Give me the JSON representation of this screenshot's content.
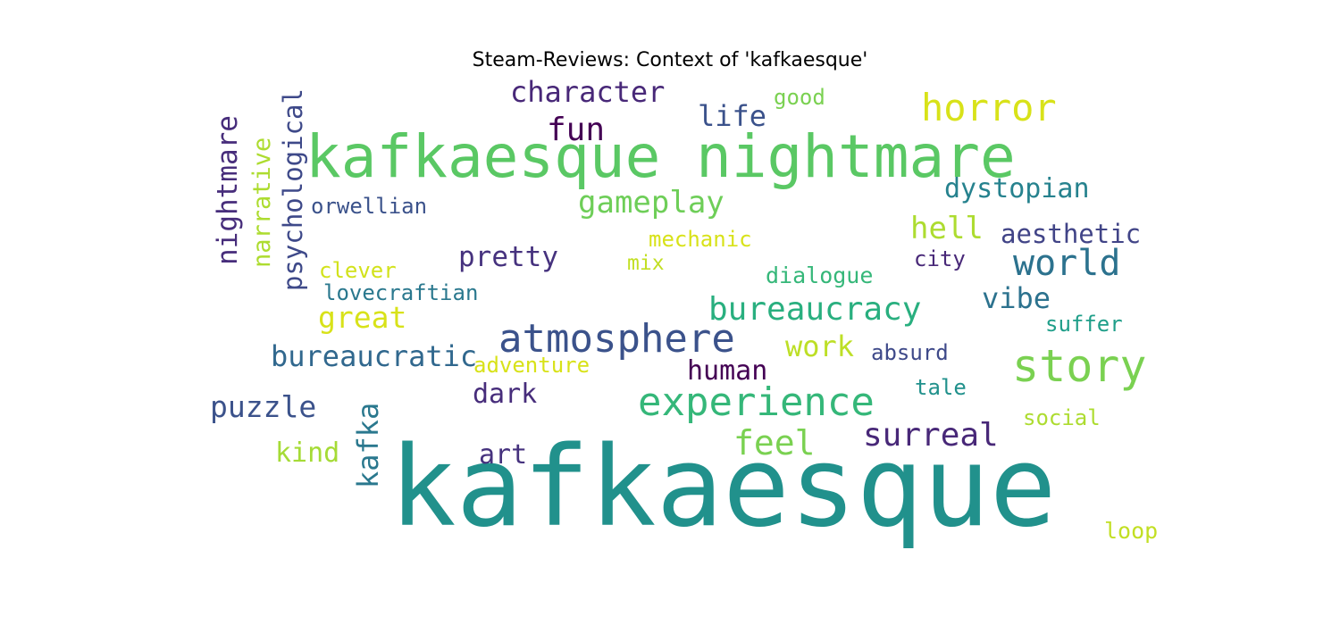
{
  "title": "Steam-Reviews: Context of 'kafkaesque'",
  "palette": "viridis",
  "words": [
    {
      "text": "kafkaesque nightmare",
      "color": "#5ac864",
      "orientation": "horizontal"
    },
    {
      "text": "kafkaesque",
      "color": "#21918c",
      "orientation": "horizontal"
    },
    {
      "text": "horror",
      "color": "#d8e219",
      "orientation": "horizontal"
    },
    {
      "text": "character",
      "color": "#482878",
      "orientation": "horizontal"
    },
    {
      "text": "fun",
      "color": "#440154",
      "orientation": "horizontal"
    },
    {
      "text": "life",
      "color": "#3b528b",
      "orientation": "horizontal"
    },
    {
      "text": "good",
      "color": "#7ad151",
      "orientation": "horizontal"
    },
    {
      "text": "nightmare",
      "color": "#472d7b",
      "orientation": "vertical"
    },
    {
      "text": "narrative",
      "color": "#addc30",
      "orientation": "vertical"
    },
    {
      "text": "psychological",
      "color": "#3e4989",
      "orientation": "vertical"
    },
    {
      "text": "orwellian",
      "color": "#3b528b",
      "orientation": "horizontal"
    },
    {
      "text": "gameplay",
      "color": "#6ece58",
      "orientation": "horizontal"
    },
    {
      "text": "dystopian",
      "color": "#26828e",
      "orientation": "horizontal"
    },
    {
      "text": "hell",
      "color": "#addc30",
      "orientation": "horizontal"
    },
    {
      "text": "aesthetic",
      "color": "#414487",
      "orientation": "horizontal"
    },
    {
      "text": "mechanic",
      "color": "#d8e219",
      "orientation": "horizontal"
    },
    {
      "text": "pretty",
      "color": "#46327e",
      "orientation": "horizontal"
    },
    {
      "text": "world",
      "color": "#2c728e",
      "orientation": "horizontal"
    },
    {
      "text": "city",
      "color": "#482878",
      "orientation": "horizontal"
    },
    {
      "text": "mix",
      "color": "#c2df23",
      "orientation": "horizontal"
    },
    {
      "text": "clever",
      "color": "#d2e21b",
      "orientation": "horizontal"
    },
    {
      "text": "dialogue",
      "color": "#35b779",
      "orientation": "horizontal"
    },
    {
      "text": "lovecraftian",
      "color": "#2a788e",
      "orientation": "horizontal"
    },
    {
      "text": "vibe",
      "color": "#2c728e",
      "orientation": "horizontal"
    },
    {
      "text": "bureaucracy",
      "color": "#29af7f",
      "orientation": "horizontal"
    },
    {
      "text": "great",
      "color": "#d8e219",
      "orientation": "horizontal"
    },
    {
      "text": "suffer",
      "color": "#1f9e89",
      "orientation": "horizontal"
    },
    {
      "text": "atmosphere",
      "color": "#3b528b",
      "orientation": "horizontal"
    },
    {
      "text": "work",
      "color": "#bddf26",
      "orientation": "horizontal"
    },
    {
      "text": "story",
      "color": "#7ad151",
      "orientation": "horizontal"
    },
    {
      "text": "bureaucratic",
      "color": "#31688e",
      "orientation": "horizontal"
    },
    {
      "text": "absurd",
      "color": "#3e4989",
      "orientation": "horizontal"
    },
    {
      "text": "adventure",
      "color": "#d8e219",
      "orientation": "horizontal"
    },
    {
      "text": "human",
      "color": "#440154",
      "orientation": "horizontal"
    },
    {
      "text": "dark",
      "color": "#472d7b",
      "orientation": "horizontal"
    },
    {
      "text": "tale",
      "color": "#21918c",
      "orientation": "horizontal"
    },
    {
      "text": "experience",
      "color": "#35b779",
      "orientation": "horizontal"
    },
    {
      "text": "puzzle",
      "color": "#3b528b",
      "orientation": "horizontal"
    },
    {
      "text": "kafka",
      "color": "#2a788e",
      "orientation": "vertical"
    },
    {
      "text": "social",
      "color": "#addc30",
      "orientation": "horizontal"
    },
    {
      "text": "feel",
      "color": "#7ad151",
      "orientation": "horizontal"
    },
    {
      "text": "surreal",
      "color": "#482878",
      "orientation": "horizontal"
    },
    {
      "text": "kind",
      "color": "#a5db36",
      "orientation": "horizontal"
    },
    {
      "text": "art",
      "color": "#46327e",
      "orientation": "horizontal"
    },
    {
      "text": "loop",
      "color": "#c2df23",
      "orientation": "horizontal"
    }
  ]
}
